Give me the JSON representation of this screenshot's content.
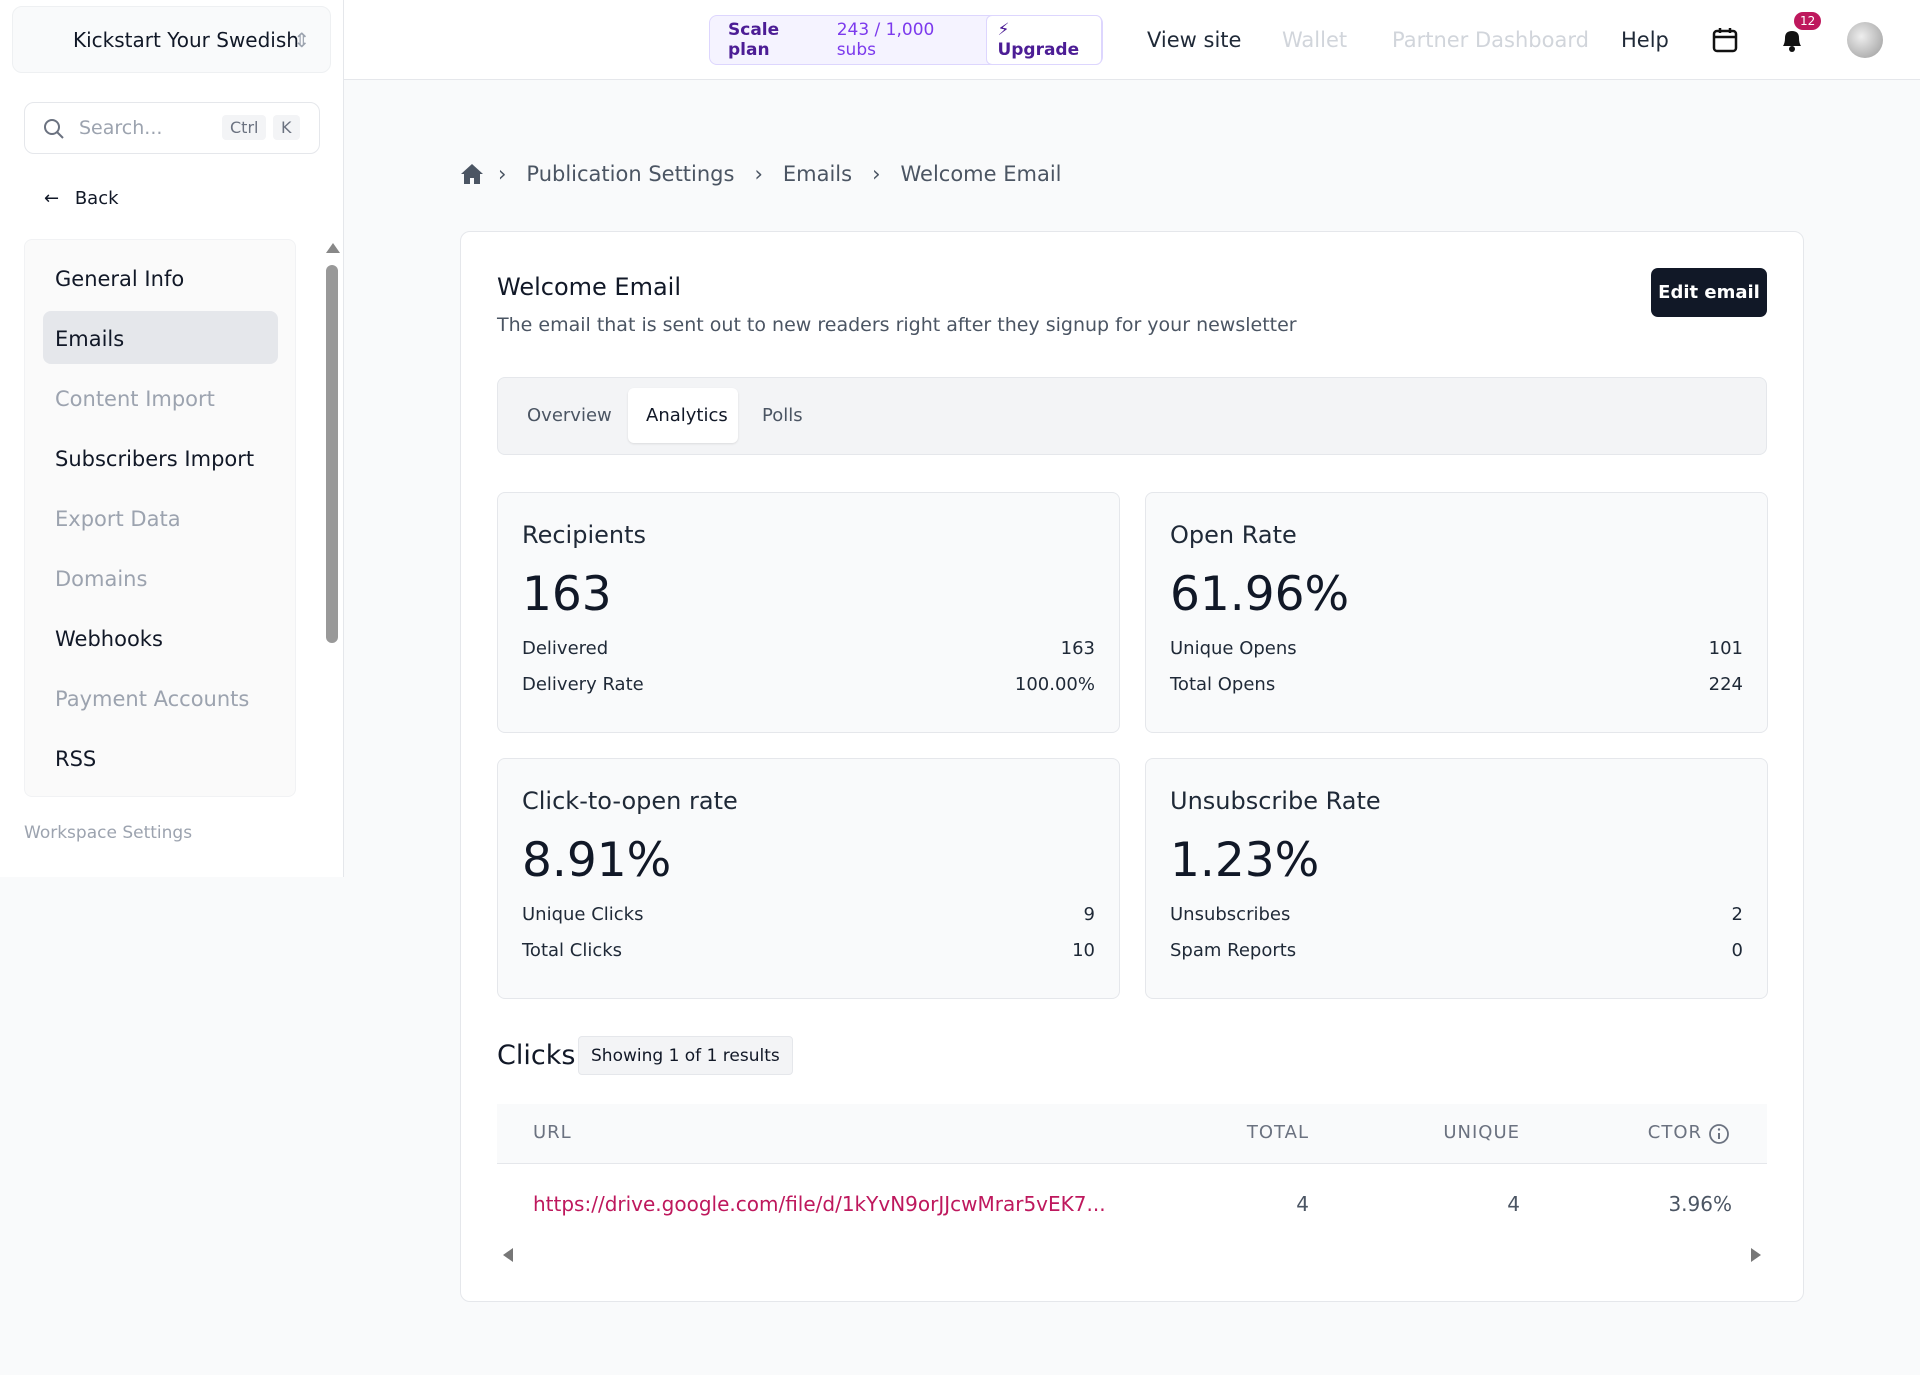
{
  "workspace": {
    "name": "Kickstart Your Swedish"
  },
  "search": {
    "placeholder": "Search...",
    "keys": [
      "Ctrl",
      "K"
    ]
  },
  "sidebar": {
    "back": "Back",
    "items": [
      "General Info",
      "Emails",
      "Content Import",
      "Subscribers Import",
      "Export Data",
      "Domains",
      "Webhooks",
      "Payment Accounts",
      "RSS"
    ],
    "footer": "Workspace Settings"
  },
  "topbar": {
    "plan": "Scale plan",
    "subs": "243 / 1,000 subs",
    "upgrade": "Upgrade",
    "links": [
      "View site",
      "Wallet",
      "Partner Dashboard",
      "Help"
    ],
    "notifications": "12"
  },
  "breadcrumb": [
    "Publication Settings",
    "Emails",
    "Welcome Email"
  ],
  "header": {
    "title": "Welcome Email",
    "subtitle": "The email that is sent out to new readers right after they signup for your newsletter",
    "button": "Edit email"
  },
  "tabs": [
    "Overview",
    "Analytics",
    "Polls"
  ],
  "stats": [
    {
      "title": "Recipients",
      "value": "163",
      "rows": [
        [
          "Delivered",
          "163"
        ],
        [
          "Delivery Rate",
          "100.00%"
        ]
      ]
    },
    {
      "title": "Open Rate",
      "value": "61.96%",
      "rows": [
        [
          "Unique Opens",
          "101"
        ],
        [
          "Total Opens",
          "224"
        ]
      ]
    },
    {
      "title": "Click-to-open rate",
      "value": "8.91%",
      "rows": [
        [
          "Unique Clicks",
          "9"
        ],
        [
          "Total Clicks",
          "10"
        ]
      ]
    },
    {
      "title": "Unsubscribe Rate",
      "value": "1.23%",
      "rows": [
        [
          "Unsubscribes",
          "2"
        ],
        [
          "Spam Reports",
          "0"
        ]
      ]
    }
  ],
  "clicks": {
    "title": "Clicks",
    "badge": "Showing 1 of 1 results",
    "table": {
      "columns": [
        "URL",
        "TOTAL",
        "UNIQUE",
        "CTOR"
      ],
      "rows": [
        [
          "https://drive.google.com/file/d/1kYvN9orJJcwMrar5vEK7...",
          "4",
          "4",
          "3.96%"
        ]
      ]
    }
  }
}
